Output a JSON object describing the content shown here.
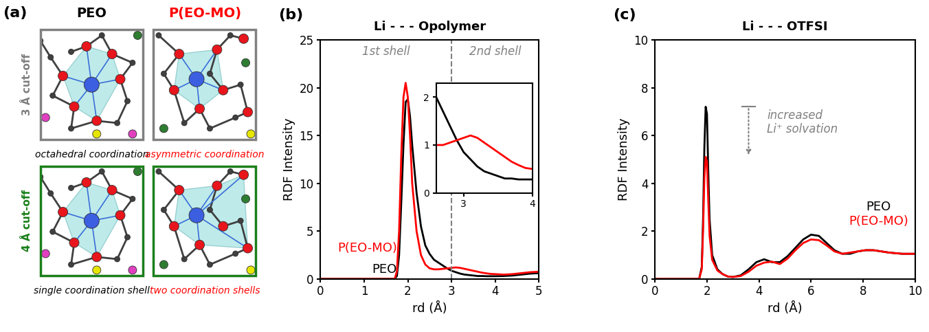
{
  "diagram": {
    "panel_label": "(a)",
    "columns": [
      {
        "title": "PEO",
        "color": "#000000"
      },
      {
        "title": "P(EO-MO)",
        "color": "#ff0000"
      }
    ],
    "rows": [
      {
        "label": "3 Å cut-off",
        "color": "#808080",
        "captions": [
          "octahedral coordination",
          "asymmetric coordination"
        ]
      },
      {
        "label": "4 Å cut-off",
        "color": "#1a7f1a",
        "captions": [
          "single coordination shell",
          "two coordination shells"
        ]
      }
    ]
  },
  "chart_data": [
    {
      "type": "line",
      "panel_label": "(b)",
      "title": "Li - - - Opolymer",
      "xlabel": "rd (Å)",
      "ylabel": "RDF Intensity",
      "x": [
        0,
        1.7,
        1.75,
        1.8,
        1.85,
        1.9,
        1.95,
        2.0,
        2.05,
        2.1,
        2.2,
        2.3,
        2.4,
        2.5,
        2.6,
        2.7,
        2.8,
        2.9,
        3.0,
        3.1,
        3.2,
        3.3,
        3.4,
        3.5,
        3.6,
        3.7,
        3.8,
        3.9,
        4.0,
        4.2,
        4.4,
        4.6,
        4.8,
        5.0
      ],
      "series": [
        {
          "name": "PEO",
          "color": "#000000",
          "values": [
            0,
            0,
            0.3,
            2.5,
            8,
            14,
            18.5,
            18.8,
            17,
            14,
            9,
            5.5,
            3.5,
            2.6,
            2.0,
            1.7,
            1.4,
            1.1,
            0.85,
            0.7,
            0.55,
            0.45,
            0.4,
            0.35,
            0.3,
            0.3,
            0.28,
            0.28,
            0.28,
            0.3,
            0.35,
            0.45,
            0.55,
            0.6
          ]
        },
        {
          "name": "P(EO-MO)",
          "color": "#ff0000",
          "values": [
            0,
            0,
            0.8,
            5,
            13,
            19,
            20.5,
            19,
            15,
            10,
            5,
            2.5,
            1.5,
            1.1,
            1.0,
            1.0,
            1.05,
            1.1,
            1.15,
            1.2,
            1.15,
            1.05,
            0.95,
            0.85,
            0.75,
            0.65,
            0.58,
            0.52,
            0.5,
            0.45,
            0.5,
            0.6,
            0.7,
            0.75
          ]
        }
      ],
      "xlim": [
        0,
        5
      ],
      "xticks": [
        0,
        1,
        2,
        3,
        4,
        5
      ],
      "ylim": [
        0,
        25
      ],
      "yticks": [
        0,
        5,
        10,
        15,
        20,
        25
      ],
      "vline": 3,
      "annotations": [
        "1st shell",
        "2nd shell"
      ],
      "inset": {
        "xlim": [
          2.6,
          4
        ],
        "xticks": [
          3,
          4
        ],
        "ylim": [
          0,
          2.3
        ],
        "yticks": [
          0,
          1,
          2
        ]
      }
    },
    {
      "type": "line",
      "panel_label": "(c)",
      "title": "Li - - - OTFSI",
      "xlabel": "rd (Å)",
      "ylabel": "RDF Intensity",
      "x": [
        0,
        1.7,
        1.8,
        1.85,
        1.9,
        1.95,
        2.0,
        2.05,
        2.1,
        2.2,
        2.4,
        2.6,
        2.8,
        3.0,
        3.3,
        3.6,
        3.9,
        4.2,
        4.5,
        4.8,
        5.1,
        5.4,
        5.7,
        6.0,
        6.3,
        6.6,
        6.9,
        7.2,
        7.5,
        7.8,
        8.1,
        8.4,
        8.7,
        9.0,
        9.5,
        10
      ],
      "series": [
        {
          "name": "PEO",
          "color": "#000000",
          "values": [
            0,
            0,
            0.5,
            2.5,
            5.5,
            7.2,
            6.9,
            4.5,
            2.5,
            1.0,
            0.4,
            0.2,
            0.1,
            0.08,
            0.15,
            0.4,
            0.7,
            0.82,
            0.7,
            0.7,
            0.95,
            1.3,
            1.65,
            1.85,
            1.8,
            1.5,
            1.2,
            1.05,
            1.05,
            1.15,
            1.2,
            1.2,
            1.15,
            1.1,
            1.05,
            1.05
          ]
        },
        {
          "name": "P(EO-MO)",
          "color": "#ff0000",
          "values": [
            0,
            0,
            0.4,
            2.0,
            4.2,
            5.1,
            4.9,
            3.3,
            1.8,
            0.8,
            0.35,
            0.2,
            0.1,
            0.08,
            0.12,
            0.3,
            0.55,
            0.68,
            0.72,
            0.62,
            0.85,
            1.2,
            1.5,
            1.65,
            1.62,
            1.4,
            1.15,
            1.05,
            1.1,
            1.15,
            1.2,
            1.2,
            1.15,
            1.1,
            1.05,
            1.05
          ]
        }
      ],
      "xlim": [
        0,
        10
      ],
      "xticks": [
        0,
        2,
        4,
        6,
        8,
        10
      ],
      "ylim": [
        0,
        10
      ],
      "yticks": [
        0,
        2,
        4,
        6,
        8,
        10
      ],
      "annotations": [
        "increased\nLi⁺ solvation"
      ]
    }
  ]
}
